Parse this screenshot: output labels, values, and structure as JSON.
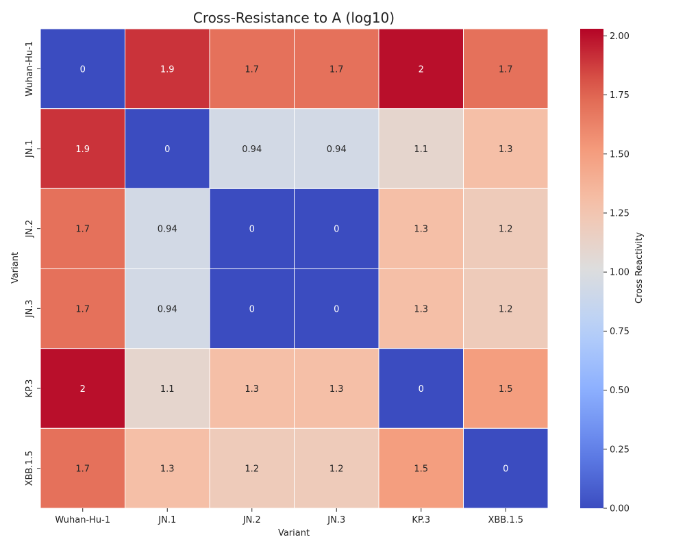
{
  "chart_data": {
    "type": "heatmap",
    "title": "Cross-Resistance to A (log10)",
    "xlabel": "Variant",
    "ylabel": "Variant",
    "x_categories": [
      "Wuhan-Hu-1",
      "JN.1",
      "JN.2",
      "JN.3",
      "KP.3",
      "XBB.1.5"
    ],
    "y_categories": [
      "Wuhan-Hu-1",
      "JN.1",
      "JN.2",
      "JN.3",
      "KP.3",
      "XBB.1.5"
    ],
    "values": [
      [
        0,
        1.9,
        1.7,
        1.7,
        2,
        1.7
      ],
      [
        1.9,
        0,
        0.94,
        0.94,
        1.1,
        1.3
      ],
      [
        1.7,
        0.94,
        0,
        0,
        1.3,
        1.2
      ],
      [
        1.7,
        0.94,
        0,
        0,
        1.3,
        1.2
      ],
      [
        2,
        1.1,
        1.3,
        1.3,
        0,
        1.5
      ],
      [
        1.7,
        1.3,
        1.2,
        1.2,
        1.5,
        0
      ]
    ],
    "colorbar": {
      "label": "Cross Reactivity",
      "range": [
        0,
        2.03
      ],
      "ticks": [
        "0.00",
        "0.25",
        "0.50",
        "0.75",
        "1.00",
        "1.25",
        "1.50",
        "1.75",
        "2.00"
      ],
      "colormap": "coolwarm",
      "low_color": "#3b4cc0",
      "mid_color": "#dddddd",
      "high_color": "#b40426"
    },
    "annotations": true,
    "grid": false
  }
}
